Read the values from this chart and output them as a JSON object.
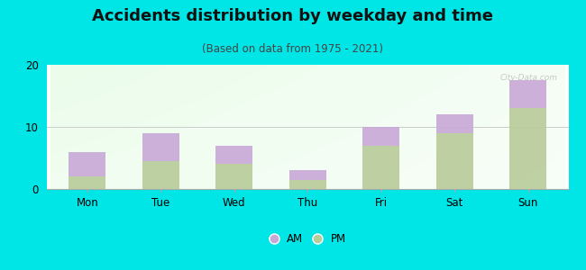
{
  "categories": [
    "Mon",
    "Tue",
    "Wed",
    "Thu",
    "Fri",
    "Sat",
    "Sun"
  ],
  "pm_values": [
    2.0,
    4.5,
    4.0,
    1.5,
    7.0,
    9.0,
    13.0
  ],
  "am_values": [
    4.0,
    4.5,
    3.0,
    1.5,
    3.0,
    3.0,
    4.5
  ],
  "am_color": "#c8a8d8",
  "pm_color": "#b8cc99",
  "title": "Accidents distribution by weekday and time",
  "subtitle": "(Based on data from 1975 - 2021)",
  "ylim": [
    0,
    20
  ],
  "yticks": [
    0,
    10,
    20
  ],
  "bg_color": "#00e5e5",
  "title_fontsize": 13,
  "subtitle_fontsize": 8.5,
  "watermark": "City-Data.com",
  "grid_color": "#cccccc"
}
